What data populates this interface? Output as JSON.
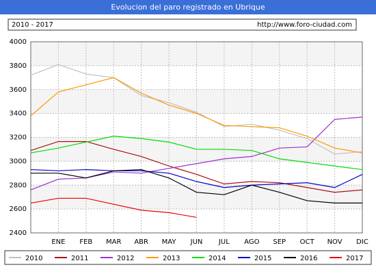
{
  "chart_data": {
    "type": "line",
    "title": "Evolucion del paro registrado en Ubrique",
    "subtitle": "2010 - 2017",
    "source": "http://www.foro-ciudad.com",
    "categories": [
      null,
      "ENE",
      "FEB",
      "MAR",
      "ABR",
      "MAY",
      "JUN",
      "JUL",
      "AGO",
      "SEP",
      "OCT",
      "NOV",
      "DIC"
    ],
    "series": [
      {
        "name": "2010",
        "color": "#c0c0c0",
        "values": [
          3720,
          3810,
          3730,
          3700,
          3550,
          3490,
          3410,
          3290,
          3310,
          3260,
          3190,
          3060,
          3080
        ]
      },
      {
        "name": "2011",
        "color": "#aa1111",
        "values": [
          3090,
          3165,
          3165,
          3100,
          3040,
          2960,
          2890,
          2810,
          2830,
          2820,
          2780,
          2740,
          2760
        ]
      },
      {
        "name": "2012",
        "color": "#9933cc",
        "values": [
          2760,
          2850,
          2860,
          2910,
          2900,
          2940,
          2980,
          3020,
          3040,
          3110,
          3120,
          3350,
          3370
        ]
      },
      {
        "name": "2013",
        "color": "#ff9900",
        "values": [
          3380,
          3580,
          3640,
          3700,
          3570,
          3470,
          3400,
          3300,
          3290,
          3280,
          3210,
          3110,
          3070
        ]
      },
      {
        "name": "2014",
        "color": "#00dd00",
        "values": [
          3070,
          3110,
          3160,
          3210,
          3190,
          3160,
          3100,
          3100,
          3090,
          3020,
          2990,
          2960,
          2930
        ]
      },
      {
        "name": "2015",
        "color": "#0000cc",
        "values": [
          2930,
          2920,
          2930,
          2920,
          2920,
          2900,
          2830,
          2780,
          2800,
          2810,
          2820,
          2780,
          2890
        ]
      },
      {
        "name": "2016",
        "color": "#000000",
        "values": [
          2900,
          2900,
          2860,
          2920,
          2930,
          2860,
          2740,
          2720,
          2800,
          2740,
          2670,
          2650,
          2650
        ]
      },
      {
        "name": "2017",
        "color": "#ee0000",
        "values": [
          2650,
          2690,
          2690,
          2640,
          2590,
          2570,
          2530,
          null,
          null,
          null,
          null,
          null,
          null
        ]
      }
    ],
    "ylim": [
      2400,
      4000
    ],
    "yticks": [
      2400,
      2600,
      2800,
      3000,
      3200,
      3400,
      3600,
      3800,
      4000
    ],
    "grid": true
  }
}
